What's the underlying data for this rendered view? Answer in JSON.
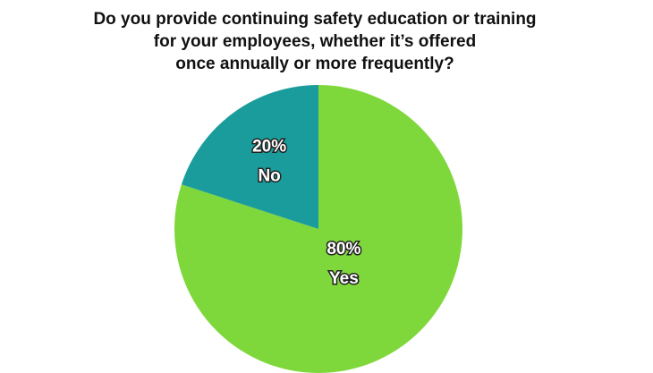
{
  "chart_data": {
    "type": "pie",
    "title": [
      "Do you provide continuing safety education or training",
      "for your employees, whether it’s offered",
      "once annually or more frequently?"
    ],
    "categories": [
      "Yes",
      "No"
    ],
    "values": [
      80,
      20
    ],
    "value_labels": [
      "80%",
      "20%"
    ],
    "colors": [
      "#7fd83b",
      "#1b9c9c"
    ]
  }
}
